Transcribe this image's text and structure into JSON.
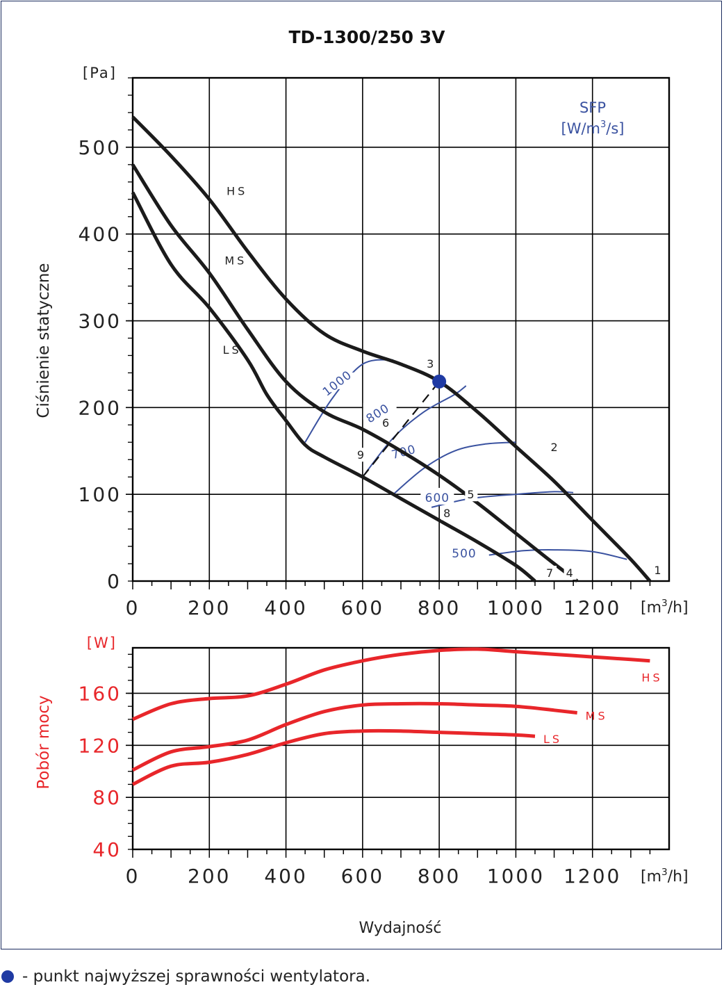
{
  "note": {
    "marker_color": "#1f3aa3",
    "text": "- punkt najwyższej sprawności wentylatora."
  },
  "chart_data": [
    {
      "type": "line",
      "title": "TD-1300/250 3V",
      "xlabel": "",
      "x_unit": "[m3/h]",
      "ylabel": "Ciśnienie statyczne",
      "y_unit": "[Pa]",
      "xlim": [
        0,
        1400
      ],
      "ylim": [
        0,
        580
      ],
      "x_ticks": [
        0,
        200,
        400,
        600,
        800,
        1000,
        1200
      ],
      "y_ticks": [
        0,
        100,
        200,
        300,
        400,
        500
      ],
      "grid": true,
      "series": [
        {
          "name": "HS",
          "color": "#1b1b1b",
          "x": [
            0,
            100,
            200,
            300,
            400,
            500,
            600,
            700,
            800,
            900,
            1000,
            1100,
            1200,
            1300,
            1350
          ],
          "y": [
            535,
            490,
            440,
            380,
            325,
            285,
            265,
            250,
            230,
            195,
            155,
            115,
            70,
            25,
            0
          ]
        },
        {
          "name": "MS",
          "color": "#1b1b1b",
          "x": [
            0,
            100,
            200,
            300,
            400,
            500,
            600,
            700,
            800,
            900,
            1000,
            1100,
            1160
          ],
          "y": [
            480,
            410,
            355,
            290,
            230,
            195,
            175,
            150,
            122,
            90,
            55,
            20,
            0
          ]
        },
        {
          "name": "LS",
          "color": "#1b1b1b",
          "x": [
            0,
            100,
            200,
            300,
            350,
            400,
            450,
            500,
            600,
            700,
            800,
            900,
            1000,
            1050
          ],
          "y": [
            448,
            365,
            315,
            255,
            215,
            185,
            157,
            143,
            120,
            95,
            70,
            45,
            18,
            0
          ]
        }
      ],
      "sfp_title": "SFP",
      "sfp_unit": "[W/m3/s]",
      "sfp_color": "#3a52a0",
      "sfp_lines": [
        {
          "label": "1000",
          "x": [
            450,
            520,
            600,
            680
          ],
          "y": [
            160,
            210,
            250,
            255
          ]
        },
        {
          "label": "800",
          "x": [
            600,
            680,
            760,
            840,
            870
          ],
          "y": [
            120,
            165,
            195,
            215,
            225
          ]
        },
        {
          "label": "700",
          "x": [
            680,
            760,
            840,
            920,
            1000
          ],
          "y": [
            100,
            130,
            150,
            158,
            160
          ]
        },
        {
          "label": "600",
          "x": [
            780,
            880,
            1000,
            1100,
            1150
          ],
          "y": [
            85,
            95,
            100,
            103,
            102
          ]
        },
        {
          "label": "500",
          "x": [
            930,
            1020,
            1100,
            1200,
            1290
          ],
          "y": [
            30,
            35,
            36,
            34,
            25
          ]
        }
      ],
      "system_line": {
        "x": [
          600,
          800
        ],
        "y": [
          120,
          230
        ]
      },
      "best_point": {
        "x": 800,
        "y": 230
      },
      "point_labels": [
        {
          "label": "1",
          "x": 1350,
          "y": 0
        },
        {
          "label": "2",
          "x": 1080,
          "y": 145
        },
        {
          "label": "3",
          "x": 800,
          "y": 230
        },
        {
          "label": "4",
          "x": 1160,
          "y": 0
        },
        {
          "label": "5",
          "x": 920,
          "y": 100
        },
        {
          "label": "6",
          "x": 680,
          "y": 170
        },
        {
          "label": "7",
          "x": 1050,
          "y": 0
        },
        {
          "label": "8",
          "x": 800,
          "y": 80
        },
        {
          "label": "9",
          "x": 600,
          "y": 120
        }
      ],
      "curve_labels": [
        {
          "label": "HS",
          "x": 245,
          "y": 445
        },
        {
          "label": "MS",
          "x": 240,
          "y": 365
        },
        {
          "label": "LS",
          "x": 235,
          "y": 262
        }
      ]
    },
    {
      "type": "line",
      "title": "",
      "xlabel": "Wydajność",
      "x_unit": "[m3/h]",
      "ylabel": "Pobór mocy",
      "y_unit": "[W]",
      "xlim": [
        0,
        1400
      ],
      "ylim": [
        40,
        195
      ],
      "x_ticks": [
        0,
        200,
        400,
        600,
        800,
        1000,
        1200
      ],
      "y_ticks": [
        40,
        80,
        120,
        160
      ],
      "grid": true,
      "label_color": "#e8262a",
      "series": [
        {
          "name": "HS",
          "color": "#e8262a",
          "x": [
            0,
            100,
            200,
            300,
            400,
            500,
            600,
            700,
            800,
            900,
            1000,
            1100,
            1200,
            1300,
            1350
          ],
          "y": [
            140,
            152,
            156,
            158,
            167,
            178,
            185,
            190,
            193,
            194,
            192,
            190,
            188,
            186,
            185
          ]
        },
        {
          "name": "MS",
          "color": "#e8262a",
          "x": [
            0,
            100,
            200,
            300,
            400,
            500,
            600,
            700,
            800,
            900,
            1000,
            1100,
            1160
          ],
          "y": [
            101,
            115,
            119,
            124,
            136,
            146,
            151,
            152,
            152,
            151,
            150,
            147,
            145
          ]
        },
        {
          "name": "LS",
          "color": "#e8262a",
          "x": [
            0,
            100,
            200,
            300,
            400,
            500,
            600,
            700,
            800,
            900,
            1000,
            1050
          ],
          "y": [
            90,
            104,
            107,
            113,
            122,
            129,
            131,
            131,
            130,
            129,
            128,
            127
          ]
        }
      ]
    }
  ]
}
